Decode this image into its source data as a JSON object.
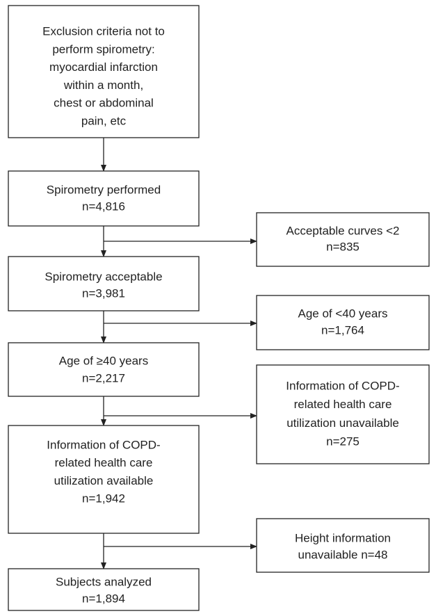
{
  "nodes": [
    {
      "lines": [
        "Exclusion criteria not to",
        "perform spirometry:",
        "myocardial infarction",
        "within a month,",
        "chest or abdominal",
        "pain, etc"
      ]
    },
    {
      "lines": [
        "Spirometry performed",
        "n=4,816"
      ]
    },
    {
      "lines": [
        "Acceptable curves <2",
        "n=835"
      ]
    },
    {
      "lines": [
        "Spirometry acceptable",
        "n=3,981"
      ]
    },
    {
      "lines": [
        "Age of <40 years",
        "n=1,764"
      ]
    },
    {
      "lines": [
        "Age of ≥40 years",
        "n=2,217"
      ]
    },
    {
      "lines": [
        "Information of COPD-",
        "related health care",
        "utilization unavailable",
        "n=275"
      ]
    },
    {
      "lines": [
        "Information of COPD-",
        "related health care",
        "utilization available",
        "n=1,942"
      ]
    },
    {
      "lines": [
        "Height information",
        "unavailable n=48"
      ]
    },
    {
      "lines": [
        "Subjects analyzed",
        "n=1,894"
      ]
    }
  ]
}
